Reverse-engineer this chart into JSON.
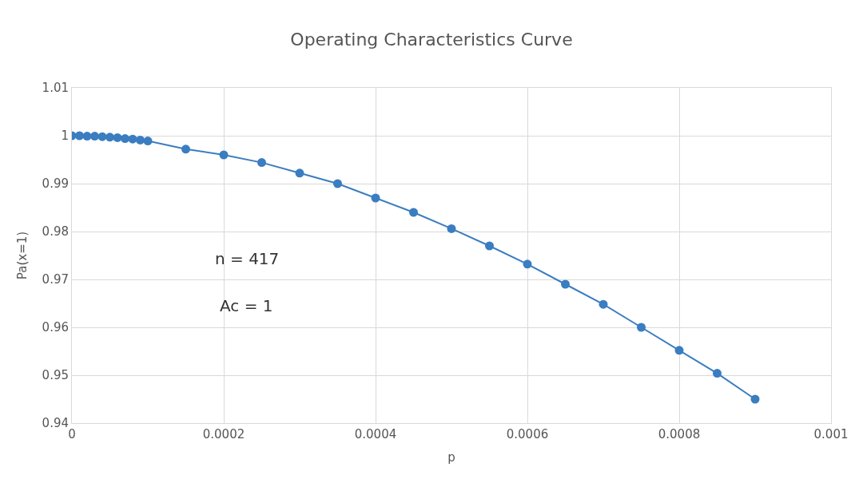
{
  "chart_data": {
    "type": "line",
    "title": "Operating Characteristics Curve",
    "xlabel": "p",
    "ylabel": "Pa(x=1)",
    "annotations": [
      "n = 417",
      "Ac = 1"
    ],
    "x": [
      0,
      1e-05,
      2e-05,
      3e-05,
      4e-05,
      5e-05,
      6e-05,
      7e-05,
      8e-05,
      9e-05,
      0.0001,
      0.00015,
      0.0002,
      0.00025,
      0.0003,
      0.00035,
      0.0004,
      0.00045,
      0.0005,
      0.00055,
      0.0006,
      0.00065,
      0.0007,
      0.00075,
      0.0008,
      0.00085,
      0.0009
    ],
    "series": [
      {
        "color": "#3a7dc0",
        "values": [
          1,
          1,
          0.9999,
          0.9999,
          0.9998,
          0.9997,
          0.9996,
          0.9994,
          0.9993,
          0.9991,
          0.9989,
          0.9972,
          0.996,
          0.9944,
          0.9922,
          0.99,
          0.987,
          0.984,
          0.9806,
          0.977,
          0.9732,
          0.969,
          0.9648,
          0.96,
          0.9552,
          0.9504,
          0.945
        ]
      }
    ],
    "xlim": [
      0,
      0.001
    ],
    "xticks": [
      0,
      0.0002,
      0.0004,
      0.0006,
      0.0008,
      0.001
    ],
    "ylim": [
      0.94,
      1.01
    ],
    "yticks": [
      0.94,
      0.95,
      0.96,
      0.97,
      0.98,
      0.99,
      1,
      1.01
    ],
    "grid": true,
    "marker": "circle",
    "line_style": "solid"
  }
}
